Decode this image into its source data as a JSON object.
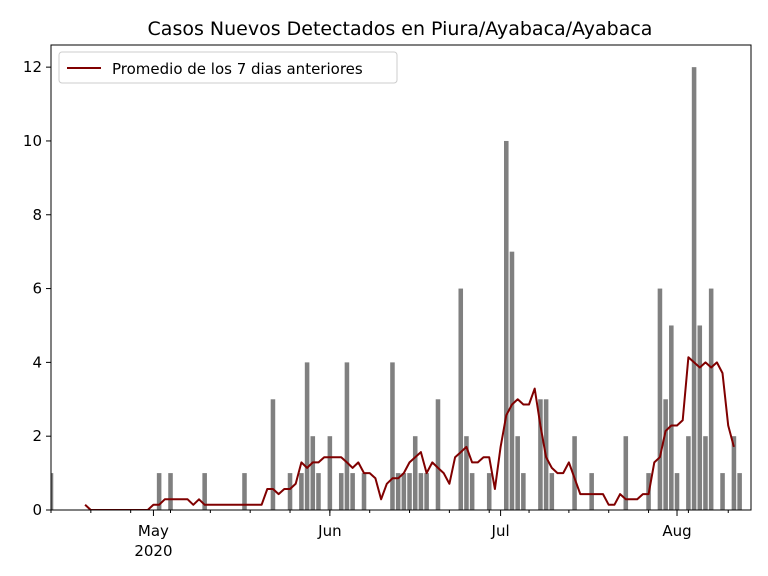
{
  "chart_data": {
    "type": "bar",
    "title": "Casos Nuevos Detectados en Piura/Ayabaca/Ayabaca",
    "xlabel": "",
    "ylabel": "",
    "ylim": [
      0,
      12.6
    ],
    "xlim": [
      "2020-04-13",
      "2020-08-14"
    ],
    "grid": false,
    "legend": {
      "placement": "top-left",
      "entries": [
        "Promedio de los 7 dias anteriores"
      ]
    },
    "colors": {
      "bars": "#808080",
      "line": "#800000"
    },
    "x_ticks": [
      {
        "date": "2020-05-01",
        "label": "May",
        "sublabel": "2020"
      },
      {
        "date": "2020-06-01",
        "label": "Jun",
        "sublabel": ""
      },
      {
        "date": "2020-07-01",
        "label": "Jul",
        "sublabel": ""
      },
      {
        "date": "2020-08-01",
        "label": "Aug",
        "sublabel": ""
      }
    ],
    "y_ticks": [
      0,
      2,
      4,
      6,
      8,
      10,
      12
    ],
    "series": [
      {
        "kind": "bar",
        "name": "",
        "points": [
          [
            "2020-04-13",
            1
          ],
          [
            "2020-05-02",
            1
          ],
          [
            "2020-05-04",
            1
          ],
          [
            "2020-05-10",
            1
          ],
          [
            "2020-05-17",
            1
          ],
          [
            "2020-05-22",
            3
          ],
          [
            "2020-05-25",
            1
          ],
          [
            "2020-05-27",
            1
          ],
          [
            "2020-05-28",
            4
          ],
          [
            "2020-05-29",
            2
          ],
          [
            "2020-05-30",
            1
          ],
          [
            "2020-06-01",
            2
          ],
          [
            "2020-06-03",
            1
          ],
          [
            "2020-06-04",
            4
          ],
          [
            "2020-06-05",
            1
          ],
          [
            "2020-06-07",
            1
          ],
          [
            "2020-06-12",
            4
          ],
          [
            "2020-06-13",
            1
          ],
          [
            "2020-06-14",
            1
          ],
          [
            "2020-06-15",
            1
          ],
          [
            "2020-06-16",
            2
          ],
          [
            "2020-06-17",
            1
          ],
          [
            "2020-06-18",
            1
          ],
          [
            "2020-06-20",
            3
          ],
          [
            "2020-06-24",
            6
          ],
          [
            "2020-06-25",
            2
          ],
          [
            "2020-06-26",
            1
          ],
          [
            "2020-06-29",
            1
          ],
          [
            "2020-07-02",
            10
          ],
          [
            "2020-07-03",
            7
          ],
          [
            "2020-07-04",
            2
          ],
          [
            "2020-07-05",
            1
          ],
          [
            "2020-07-08",
            3
          ],
          [
            "2020-07-09",
            3
          ],
          [
            "2020-07-10",
            1
          ],
          [
            "2020-07-14",
            2
          ],
          [
            "2020-07-17",
            1
          ],
          [
            "2020-07-23",
            2
          ],
          [
            "2020-07-27",
            1
          ],
          [
            "2020-07-29",
            6
          ],
          [
            "2020-07-30",
            3
          ],
          [
            "2020-07-31",
            5
          ],
          [
            "2020-08-01",
            1
          ],
          [
            "2020-08-03",
            2
          ],
          [
            "2020-08-04",
            12
          ],
          [
            "2020-08-05",
            5
          ],
          [
            "2020-08-06",
            2
          ],
          [
            "2020-08-07",
            6
          ],
          [
            "2020-08-09",
            1
          ],
          [
            "2020-08-11",
            2
          ],
          [
            "2020-08-12",
            1
          ]
        ]
      },
      {
        "kind": "line",
        "name": "Promedio de los 7 dias anteriores",
        "points": [
          [
            "2020-04-19",
            0.14
          ],
          [
            "2020-04-20",
            0
          ],
          [
            "2020-04-25",
            0
          ],
          [
            "2020-04-30",
            0
          ],
          [
            "2020-05-01",
            0.14
          ],
          [
            "2020-05-02",
            0.14
          ],
          [
            "2020-05-03",
            0.29
          ],
          [
            "2020-05-07",
            0.29
          ],
          [
            "2020-05-08",
            0.14
          ],
          [
            "2020-05-09",
            0.29
          ],
          [
            "2020-05-10",
            0.14
          ],
          [
            "2020-05-20",
            0.14
          ],
          [
            "2020-05-21",
            0.57
          ],
          [
            "2020-05-22",
            0.57
          ],
          [
            "2020-05-23",
            0.43
          ],
          [
            "2020-05-24",
            0.57
          ],
          [
            "2020-05-25",
            0.57
          ],
          [
            "2020-05-26",
            0.71
          ],
          [
            "2020-05-27",
            1.29
          ],
          [
            "2020-05-28",
            1.14
          ],
          [
            "2020-05-29",
            1.29
          ],
          [
            "2020-05-30",
            1.29
          ],
          [
            "2020-05-31",
            1.43
          ],
          [
            "2020-06-03",
            1.43
          ],
          [
            "2020-06-04",
            1.29
          ],
          [
            "2020-06-05",
            1.14
          ],
          [
            "2020-06-06",
            1.29
          ],
          [
            "2020-06-07",
            1
          ],
          [
            "2020-06-08",
            1
          ],
          [
            "2020-06-09",
            0.86
          ],
          [
            "2020-06-10",
            0.29
          ],
          [
            "2020-06-11",
            0.71
          ],
          [
            "2020-06-12",
            0.86
          ],
          [
            "2020-06-13",
            0.86
          ],
          [
            "2020-06-14",
            1
          ],
          [
            "2020-06-15",
            1.29
          ],
          [
            "2020-06-16",
            1.43
          ],
          [
            "2020-06-17",
            1.57
          ],
          [
            "2020-06-18",
            1
          ],
          [
            "2020-06-19",
            1.29
          ],
          [
            "2020-06-20",
            1.14
          ],
          [
            "2020-06-21",
            1
          ],
          [
            "2020-06-22",
            0.71
          ],
          [
            "2020-06-23",
            1.43
          ],
          [
            "2020-06-24",
            1.57
          ],
          [
            "2020-06-25",
            1.71
          ],
          [
            "2020-06-26",
            1.29
          ],
          [
            "2020-06-27",
            1.29
          ],
          [
            "2020-06-28",
            1.43
          ],
          [
            "2020-06-29",
            1.43
          ],
          [
            "2020-06-30",
            0.57
          ],
          [
            "2020-07-01",
            1.71
          ],
          [
            "2020-07-02",
            2.57
          ],
          [
            "2020-07-03",
            2.86
          ],
          [
            "2020-07-04",
            3
          ],
          [
            "2020-07-05",
            2.86
          ],
          [
            "2020-07-06",
            2.86
          ],
          [
            "2020-07-07",
            3.29
          ],
          [
            "2020-07-08",
            2.29
          ],
          [
            "2020-07-09",
            1.43
          ],
          [
            "2020-07-10",
            1.14
          ],
          [
            "2020-07-11",
            1
          ],
          [
            "2020-07-12",
            1
          ],
          [
            "2020-07-13",
            1.29
          ],
          [
            "2020-07-14",
            0.86
          ],
          [
            "2020-07-15",
            0.43
          ],
          [
            "2020-07-19",
            0.43
          ],
          [
            "2020-07-20",
            0.14
          ],
          [
            "2020-07-21",
            0.14
          ],
          [
            "2020-07-22",
            0.43
          ],
          [
            "2020-07-23",
            0.29
          ],
          [
            "2020-07-25",
            0.29
          ],
          [
            "2020-07-26",
            0.43
          ],
          [
            "2020-07-27",
            0.43
          ],
          [
            "2020-07-28",
            1.29
          ],
          [
            "2020-07-29",
            1.43
          ],
          [
            "2020-07-30",
            2.14
          ],
          [
            "2020-07-31",
            2.29
          ],
          [
            "2020-08-01",
            2.29
          ],
          [
            "2020-08-02",
            2.43
          ],
          [
            "2020-08-03",
            4.14
          ],
          [
            "2020-08-04",
            4
          ],
          [
            "2020-08-05",
            3.86
          ],
          [
            "2020-08-06",
            4
          ],
          [
            "2020-08-07",
            3.86
          ],
          [
            "2020-08-08",
            4
          ],
          [
            "2020-08-09",
            3.71
          ],
          [
            "2020-08-10",
            2.29
          ],
          [
            "2020-08-11",
            1.71
          ]
        ]
      }
    ]
  }
}
